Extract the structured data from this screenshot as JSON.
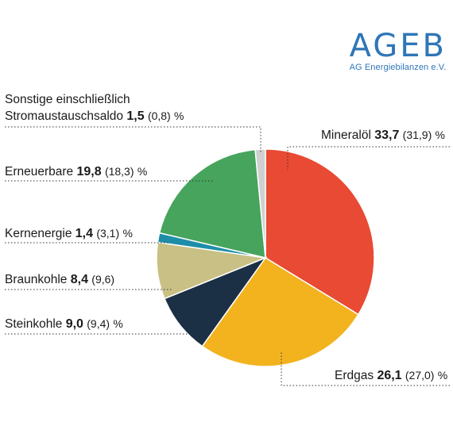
{
  "logo": {
    "name": "AGEB",
    "subtitle": "AG Energiebilanzen e.V."
  },
  "chart_data": {
    "type": "pie",
    "unit": "%",
    "slices": [
      {
        "key": "mineraloel",
        "label": "Mineralöl",
        "value": 33.7,
        "value_text": "33,7",
        "prev_text": "(31,9)",
        "unit": "%",
        "color": "#e84a33"
      },
      {
        "key": "erdgas",
        "label": "Erdgas",
        "value": 26.1,
        "value_text": "26,1",
        "prev_text": "(27,0)",
        "unit": "%",
        "color": "#f3b31f"
      },
      {
        "key": "steinkohle",
        "label": "Steinkohle",
        "value": 9.0,
        "value_text": "9,0",
        "prev_text": "(9,4)",
        "unit": "%",
        "color": "#1b2f45"
      },
      {
        "key": "braunkohle",
        "label": "Braunkohle",
        "value": 8.4,
        "value_text": "8,4",
        "prev_text": "(9,6)",
        "unit": "",
        "color": "#c8c084"
      },
      {
        "key": "kernenergie",
        "label": "Kernenergie",
        "value": 1.4,
        "value_text": "1,4",
        "prev_text": "(3,1)",
        "unit": "%",
        "color": "#1e8ea8"
      },
      {
        "key": "erneuerbare",
        "label": "Erneuerbare",
        "value": 19.8,
        "value_text": "19,8",
        "prev_text": "(18,3)",
        "unit": "%",
        "color": "#46a45d"
      },
      {
        "key": "sonstige",
        "label_line1": "Sonstige einschließlich",
        "label": "Stromaustauschsaldo",
        "value": 1.5,
        "value_text": "1,5",
        "prev_text": "(0,8)",
        "unit": "%",
        "color": "#d0d0d0"
      }
    ]
  }
}
